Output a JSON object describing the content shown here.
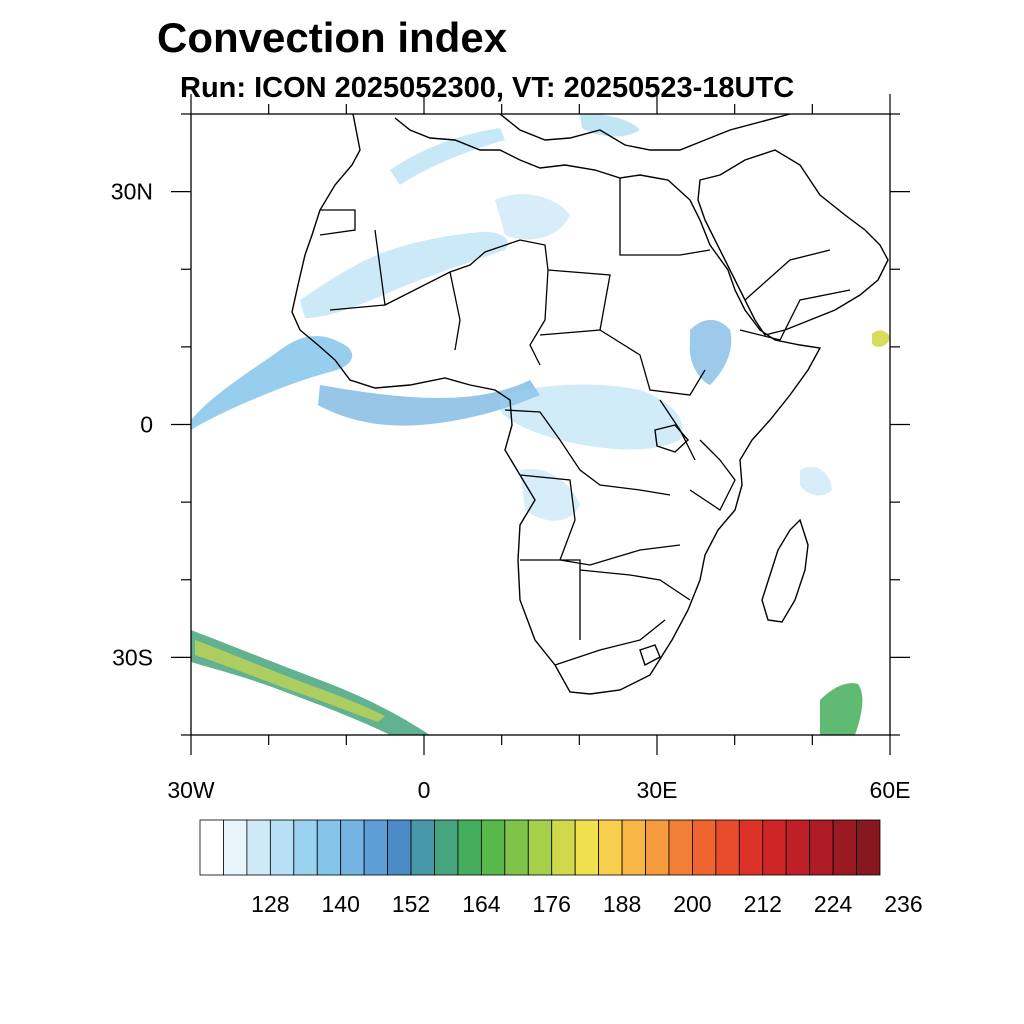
{
  "title": "Convection index",
  "subtitle": "Run: ICON 2025052300,  VT: 20250523-18UTC",
  "map": {
    "lon_range": [
      -30,
      60
    ],
    "lat_range": [
      -40,
      40
    ],
    "lat_ticks": [
      {
        "value": 30,
        "label": "30N"
      },
      {
        "value": 0,
        "label": "0"
      },
      {
        "value": -30,
        "label": "30S"
      }
    ],
    "lon_ticks": [
      {
        "value": -30,
        "label": "30W"
      },
      {
        "value": 0,
        "label": "0"
      },
      {
        "value": 30,
        "label": "30E"
      },
      {
        "value": 60,
        "label": "60E"
      }
    ],
    "minor_lat": [
      40,
      20,
      10,
      -10,
      -20,
      -40
    ],
    "minor_lon": [
      -20,
      -10,
      10,
      20,
      40,
      50
    ]
  },
  "colorbar": {
    "colors": [
      "#ffffff",
      "#e8f5fb",
      "#cfeaf7",
      "#b6e0f5",
      "#9ad3f0",
      "#86c5ea",
      "#74b3e2",
      "#5e9ed7",
      "#4b8cc7",
      "#4798a8",
      "#46a57f",
      "#45ae5c",
      "#58b84a",
      "#7fc34a",
      "#a6cf4a",
      "#cfd94b",
      "#f0e04e",
      "#f8cf4c",
      "#f7b646",
      "#f59a3d",
      "#f27f35",
      "#ee652f",
      "#e84c2b",
      "#dd3228",
      "#cf2526",
      "#bf1f26",
      "#ad1c25",
      "#9a1a23",
      "#881820"
    ],
    "labels": [
      "128",
      "140",
      "152",
      "164",
      "176",
      "188",
      "200",
      "212",
      "224",
      "236"
    ]
  },
  "fields": [
    {
      "name": "atlantic-itcz-band",
      "color": "#86c5ea"
    },
    {
      "name": "gulf-of-guinea-band",
      "color": "#74b3e2"
    },
    {
      "name": "south-atlantic-front",
      "color": "#46a57f"
    },
    {
      "name": "front-core",
      "color": "#cfd94b"
    },
    {
      "name": "sahel-patches",
      "color": "#b6e0f5"
    },
    {
      "name": "madagascar-se-cell",
      "color": "#45ae5c"
    },
    {
      "name": "arabian-sea-cell",
      "color": "#cfd94b"
    },
    {
      "name": "ethiopian-highlands",
      "color": "#74b3e2"
    }
  ]
}
